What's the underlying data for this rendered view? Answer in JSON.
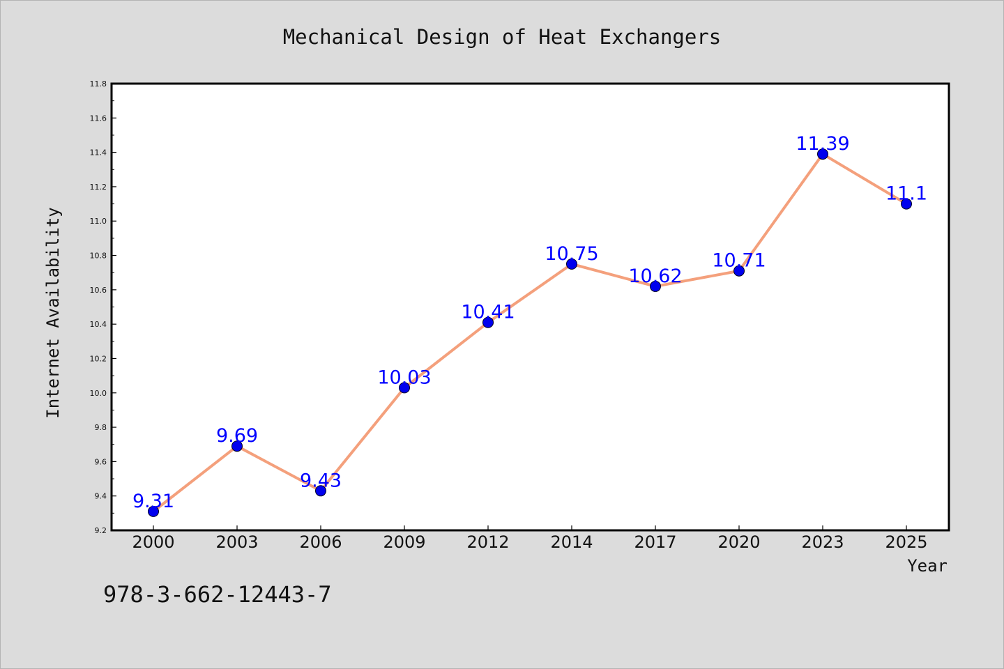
{
  "chart_data": {
    "type": "line",
    "title": "Mechanical Design of Heat Exchangers",
    "xlabel": "Year",
    "ylabel": "Internet Availability",
    "categories": [
      "2000",
      "2003",
      "2006",
      "2009",
      "2012",
      "2014",
      "2017",
      "2020",
      "2023",
      "2025"
    ],
    "series": [
      {
        "values": [
          9.31,
          9.69,
          9.43,
          10.03,
          10.41,
          10.75,
          10.62,
          10.71,
          11.39,
          11.1
        ],
        "labels": [
          "9.31",
          "9.69",
          "9.43",
          "10.03",
          "10.41",
          "10.75",
          "10.62",
          "10.71",
          "11.39",
          "11.1"
        ],
        "line_color": "#f4a07c",
        "marker_color": "#0000ee",
        "label_color": "#0000ff"
      }
    ],
    "ylim": [
      9.2,
      11.8
    ],
    "yticks": [
      "9.2",
      "9.4",
      "9.6",
      "9.8",
      "10.0",
      "10.2",
      "10.4",
      "10.6",
      "10.8",
      "11.0",
      "11.2",
      "11.4",
      "11.6",
      "11.8"
    ],
    "grid": false,
    "legend": "none"
  },
  "footer": {
    "isbn": "978-3-662-12443-7"
  }
}
